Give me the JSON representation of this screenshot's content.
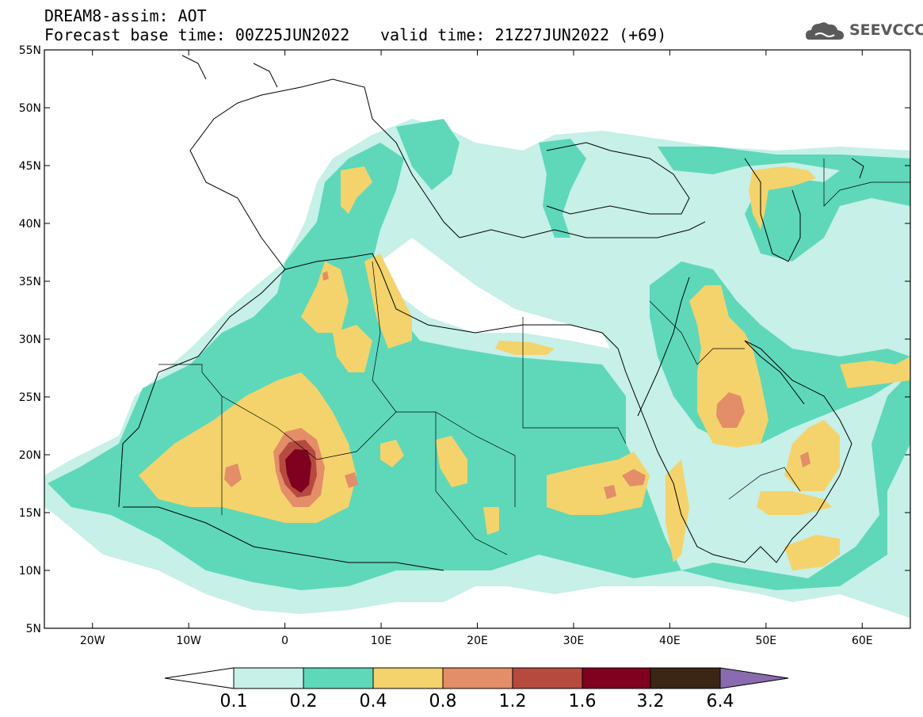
{
  "header": {
    "title_line1": "DREAM8-assim: AOT",
    "title_line2": "Forecast base time: 00Z25JUN2022",
    "valid_time": "valid time: 21Z27JUN2022 (+69)",
    "logo_text": "SEEVCCC"
  },
  "map": {
    "lat_labels": [
      "55N",
      "50N",
      "45N",
      "40N",
      "35N",
      "30N",
      "25N",
      "20N",
      "15N",
      "10N",
      "5N"
    ],
    "lon_labels": [
      "20W",
      "10W",
      "0",
      "10E",
      "20E",
      "30E",
      "40E",
      "50E",
      "60E"
    ],
    "lat_range": [
      5,
      55
    ],
    "lon_range": [
      -25,
      65
    ]
  },
  "colorbar": {
    "levels": [
      "0.1",
      "0.2",
      "0.4",
      "0.8",
      "1.2",
      "1.6",
      "3.2",
      "6.4"
    ],
    "colors": [
      "#ffffff",
      "#c6f0e8",
      "#5ed8b9",
      "#f4d36c",
      "#e38d69",
      "#b64a3f",
      "#80001f",
      "#3b2615",
      "#8a6bb0"
    ]
  },
  "colors": {
    "c1": "#c6f0e8",
    "c2": "#5ed8b9",
    "c3": "#f4d36c",
    "c4": "#e38d69",
    "c5": "#b64a3f",
    "c6": "#80001f"
  }
}
